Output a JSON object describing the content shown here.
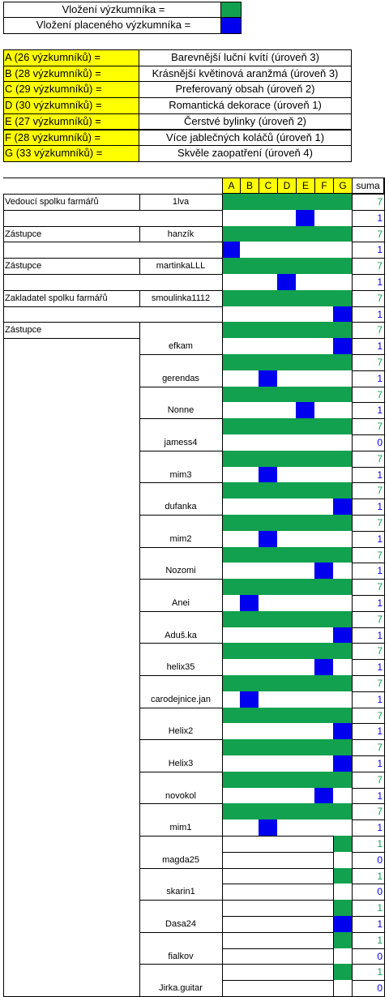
{
  "legend": {
    "researcher_label": "Vložení výzkumníka =",
    "paid_researcher_label": "Vložení placeného výzkumníka =",
    "researcher_color": "#12a14e",
    "paid_color": "#0000ee"
  },
  "research": [
    {
      "code": "A (26 výzkumníků) =",
      "name": "Barevnější luční kvítí (úroveň 3)"
    },
    {
      "code": "B (28 výzkumníků) =",
      "name": "Krásnější květinová aranžmá (úroveň 3)"
    },
    {
      "code": "C (29 výzkumníků) =",
      "name": "Preferovaný obsah (úroveň 2)"
    },
    {
      "code": "D (30 výzkumníků) =",
      "name": "Romantická dekorace (úroveň 1)"
    },
    {
      "code": "E (27 výzkumníků) =",
      "name": "Čerstvé bylinky (úroveň 2)"
    },
    {
      "code": "F (28 výzkumníků) =",
      "name": "Více jablečných koláčů (úroveň 1)"
    },
    {
      "code": "G (33 výzkumníků) =",
      "name": "Skvěle zaopatření (úroveň 4)"
    }
  ],
  "table": {
    "columns": [
      "A",
      "B",
      "C",
      "D",
      "E",
      "F",
      "G"
    ],
    "sum_label": "suma",
    "roles": {
      "leader": "Vedoucí spolku farmářů",
      "deputy": "Zástupce",
      "founder": "Zakladatel spolku farmářů"
    },
    "members": [
      {
        "role": "Vedoucí spolku farmářů",
        "name": "1lva",
        "blue": "E",
        "green": "7",
        "paid": "1"
      },
      {
        "role": "Zástupce",
        "name": "hanzík",
        "blue": "A",
        "green": "7",
        "paid": "1"
      },
      {
        "role": "Zástupce",
        "name": "martinkaLLL",
        "blue": "D",
        "green": "7",
        "paid": "1"
      },
      {
        "role": "Zakladatel spolku farmářů",
        "name": "smoulinka1112",
        "blue": "G",
        "green": "7",
        "paid": "1"
      },
      {
        "role": "Zástupce",
        "name": "efkam",
        "blue": "G",
        "green": "7",
        "paid": "1"
      },
      {
        "role": "",
        "name": "gerendas",
        "blue": "C",
        "green": "7",
        "paid": "1"
      },
      {
        "role": "",
        "name": "Nonne",
        "blue": "E",
        "green": "7",
        "paid": "1"
      },
      {
        "role": "",
        "name": "jamess4",
        "blue": "",
        "green": "7",
        "paid": "0"
      },
      {
        "role": "",
        "name": "mim3",
        "blue": "C",
        "green": "7",
        "paid": "1"
      },
      {
        "role": "",
        "name": "dufanka",
        "blue": "G",
        "green": "7",
        "paid": "1"
      },
      {
        "role": "",
        "name": "mim2",
        "blue": "C",
        "green": "7",
        "paid": "1"
      },
      {
        "role": "",
        "name": "Nozomi",
        "blue": "F",
        "green": "7",
        "paid": "1"
      },
      {
        "role": "",
        "name": "Anei",
        "blue": "B",
        "green": "7",
        "paid": "1"
      },
      {
        "role": "",
        "name": "Aduš.ka",
        "blue": "G",
        "green": "7",
        "paid": "1"
      },
      {
        "role": "",
        "name": "helix35",
        "blue": "F",
        "green": "7",
        "paid": "1"
      },
      {
        "role": "",
        "name": "carodejnice.jan",
        "blue": "B",
        "green": "7",
        "paid": "1"
      },
      {
        "role": "",
        "name": "Helix2",
        "blue": "G",
        "green": "7",
        "paid": "1"
      },
      {
        "role": "",
        "name": "Helix3",
        "blue": "G",
        "green": "7",
        "paid": "1"
      },
      {
        "role": "",
        "name": "novokol",
        "blue": "F",
        "green": "7",
        "paid": "1"
      },
      {
        "role": "",
        "name": "mim1",
        "blue": "C",
        "green": "7",
        "paid": "1"
      },
      {
        "role": "",
        "name": "magda25",
        "blue": "",
        "green": "1",
        "paid": "0",
        "partial": true
      },
      {
        "role": "",
        "name": "skarin1",
        "blue": "",
        "green": "1",
        "paid": "0",
        "partial": true
      },
      {
        "role": "",
        "name": "Dasa24",
        "blue": "G",
        "green": "1",
        "paid": "1",
        "partial": true
      },
      {
        "role": "",
        "name": "fialkov",
        "blue": "",
        "green": "1",
        "paid": "0",
        "partial": true
      },
      {
        "role": "",
        "name": "Jirka.guitar",
        "blue": "",
        "green": "1",
        "paid": "0",
        "partial": true
      }
    ]
  }
}
